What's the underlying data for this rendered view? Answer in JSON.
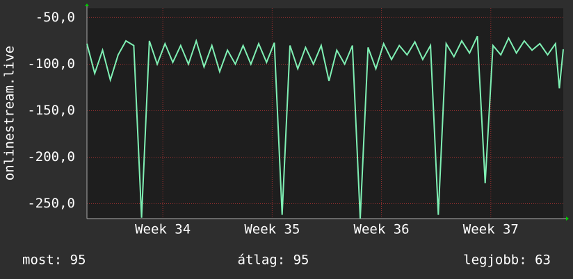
{
  "chart_data": {
    "type": "line",
    "y_label": "onlinestream.live",
    "x": [
      0,
      0.5,
      1,
      1.5,
      2,
      2.5,
      3,
      3.5,
      4,
      4.5,
      5,
      5.5,
      6,
      6.5,
      7,
      7.5,
      8,
      8.5,
      9,
      9.5,
      10,
      10.5,
      11,
      11.5,
      12,
      12.5,
      13,
      13.5,
      14,
      14.5,
      15,
      15.5,
      16,
      16.5,
      17,
      17.5,
      18,
      18.5,
      19,
      19.5,
      20,
      20.5,
      21,
      21.5,
      22,
      22.5,
      23,
      23.5,
      24,
      24.5,
      25,
      25.5,
      26,
      26.5,
      27,
      27.5,
      28,
      28.5,
      29,
      29.5,
      30,
      30.25,
      30.5
    ],
    "values": [
      -78,
      -110,
      -85,
      -117,
      -90,
      -75,
      -80,
      -265,
      -75,
      -100,
      -78,
      -98,
      -80,
      -100,
      -75,
      -103,
      -80,
      -108,
      -85,
      -100,
      -80,
      -100,
      -78,
      -98,
      -77,
      -262,
      -80,
      -105,
      -82,
      -100,
      -80,
      -118,
      -85,
      -100,
      -80,
      -266,
      -82,
      -105,
      -78,
      -95,
      -80,
      -90,
      -76,
      -95,
      -80,
      -262,
      -78,
      -92,
      -75,
      -88,
      -70,
      -228,
      -80,
      -90,
      -72,
      -88,
      -75,
      -85,
      -78,
      -90,
      -78,
      -126,
      -84
    ],
    "color": "#7ff0b4",
    "xlim": [
      0,
      30.5
    ],
    "xticks": [
      {
        "value": 4.86,
        "label": "Week 34"
      },
      {
        "value": 11.86,
        "label": "Week 35"
      },
      {
        "value": 18.86,
        "label": "Week 36"
      },
      {
        "value": 25.86,
        "label": "Week 37"
      }
    ],
    "ylim": [
      -266,
      -40
    ],
    "yticks": [
      {
        "value": -50,
        "label": "-50,0"
      },
      {
        "value": -100,
        "label": "-100,0"
      },
      {
        "value": -150,
        "label": "-150,0"
      },
      {
        "value": -200,
        "label": "-200,0"
      },
      {
        "value": -250,
        "label": "-250,0"
      }
    ],
    "grid": true,
    "footer": [
      "most: 95",
      "átlag: 95",
      "legjobb: 63"
    ]
  }
}
